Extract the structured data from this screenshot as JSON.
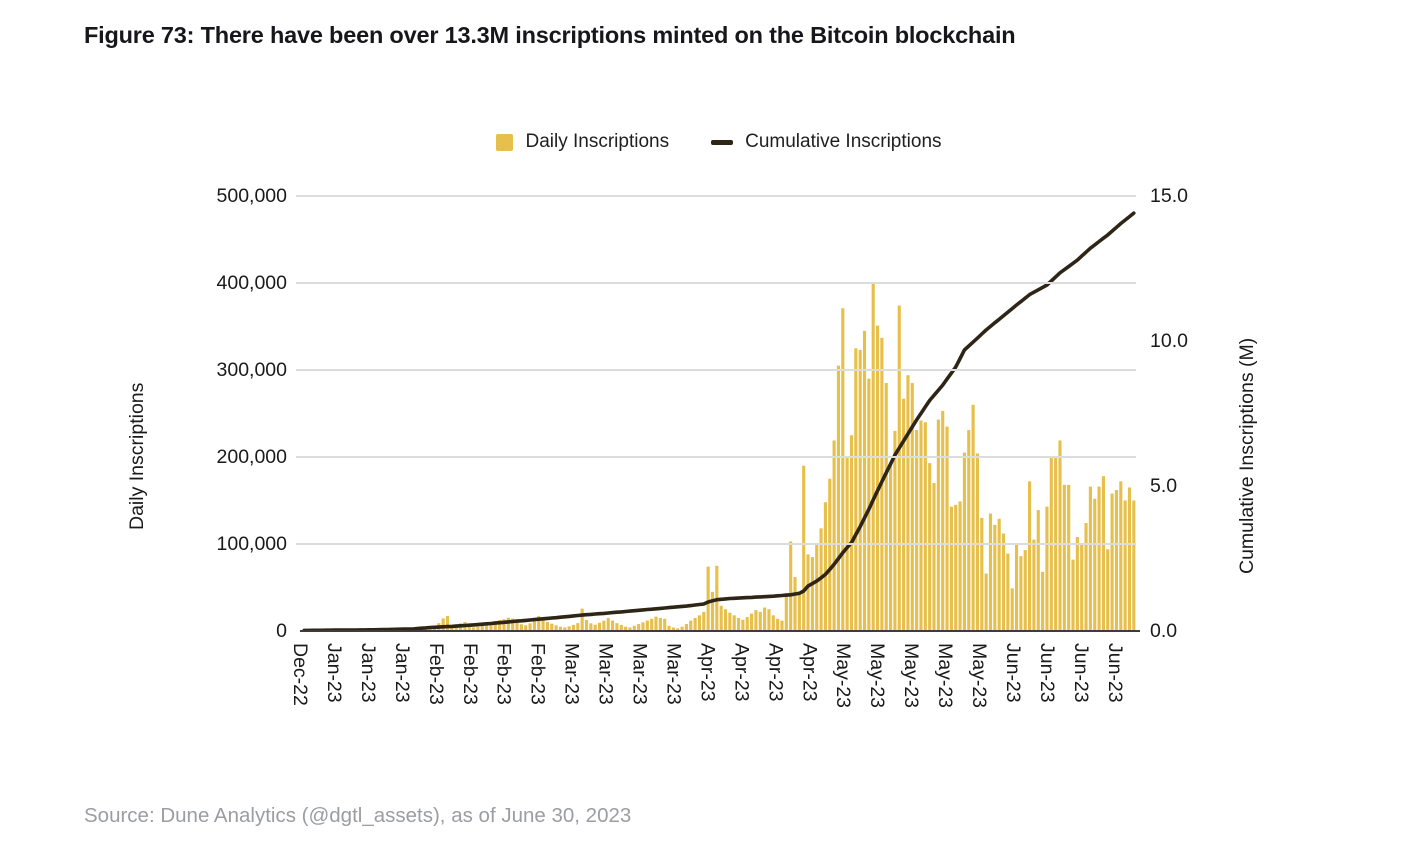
{
  "figure_title": "Figure 73: There have been over 13.3M inscriptions minted on the Bitcoin blockchain",
  "source": "Source: Dune Analytics (@dgtl_assets), as of June 30, 2023",
  "legend": {
    "daily_label": "Daily Inscriptions",
    "cumulative_label": "Cumulative Inscriptions"
  },
  "colors": {
    "bar": "#E7BF4B",
    "line": "#2E2517",
    "grid": "#dcdcdc",
    "axis": "#3c3c3c",
    "text": "#1a1a1a",
    "source_text": "#9b9da2"
  },
  "chart_data": {
    "type": "bar",
    "title": "Figure 73: There have been over 13.3M inscriptions minted on the Bitcoin blockchain",
    "grid": "horizontal",
    "legend_position": "top-center",
    "left_axis": {
      "label": "Daily Inscriptions",
      "min": 0,
      "max": 500000,
      "ticks": [
        "500,000",
        "400,000",
        "300,000",
        "200,000",
        "100,000",
        "0"
      ]
    },
    "right_axis": {
      "label": "Cumulative Inscriptions (M)",
      "min": 0,
      "max": 15,
      "ticks": [
        "15.0",
        "10.0",
        "5.0",
        "0.0"
      ]
    },
    "x_tick_labels": [
      "Dec-22",
      "Jan-23",
      "Jan-23",
      "Jan-23",
      "Feb-23",
      "Feb-23",
      "Feb-23",
      "Feb-23",
      "Mar-23",
      "Mar-23",
      "Mar-23",
      "Mar-23",
      "Apr-23",
      "Apr-23",
      "Apr-23",
      "Apr-23",
      "May-23",
      "May-23",
      "May-23",
      "May-23",
      "May-23",
      "Jun-23",
      "Jun-23",
      "Jun-23",
      "Jun-23"
    ],
    "x_tick_span_fraction": 0.977,
    "series": [
      {
        "name": "Daily Inscriptions",
        "type": "bar",
        "axis": "left",
        "unit": "inscriptions per day (approx.)",
        "values": [
          100,
          100,
          100,
          100,
          150,
          200,
          200,
          250,
          300,
          350,
          400,
          400,
          450,
          500,
          550,
          600,
          650,
          700,
          750,
          800,
          850,
          900,
          950,
          1000,
          1100,
          1400,
          1800,
          2300,
          3400,
          5000,
          5700,
          9000,
          14500,
          17200,
          6900,
          7700,
          8800,
          10300,
          5700,
          4200,
          5000,
          6500,
          8000,
          9600,
          11500,
          12600,
          13400,
          15300,
          14200,
          10300,
          7700,
          6500,
          8800,
          11000,
          17200,
          13800,
          10300,
          8400,
          6500,
          5000,
          4200,
          5300,
          7000,
          9000,
          25700,
          12600,
          8800,
          7200,
          9500,
          11800,
          14900,
          12000,
          9000,
          7000,
          5000,
          4000,
          6000,
          8000,
          10000,
          12000,
          14000,
          16500,
          15000,
          14000,
          6000,
          4000,
          3000,
          5000,
          8000,
          12000,
          15000,
          18000,
          22000,
          74000,
          45000,
          75000,
          29000,
          25000,
          21000,
          18000,
          15000,
          13000,
          16000,
          20000,
          24000,
          22000,
          27000,
          25000,
          18000,
          14000,
          12000,
          42000,
          103000,
          62000,
          45000,
          190000,
          88000,
          85000,
          100000,
          118000,
          148000,
          175000,
          219000,
          305000,
          371000,
          200000,
          225000,
          325000,
          323000,
          345000,
          290000,
          400000,
          351000,
          337000,
          285000,
          192000,
          230000,
          374000,
          267000,
          294000,
          285000,
          231000,
          242000,
          240000,
          193000,
          170000,
          243000,
          253000,
          235000,
          143000,
          145000,
          149000,
          205000,
          231000,
          260000,
          204000,
          130000,
          66000,
          135000,
          122000,
          129000,
          112000,
          89000,
          49000,
          101000,
          86000,
          93000,
          172000,
          105000,
          139000,
          68000,
          143000,
          201000,
          201000,
          219000,
          168000,
          168000,
          82000,
          108000,
          101000,
          124000,
          166000,
          152000,
          166000,
          178000,
          94000,
          158000,
          162000,
          172000,
          150000,
          165000,
          150000
        ]
      },
      {
        "name": "Cumulative Inscriptions",
        "type": "line",
        "axis": "right",
        "unit": "millions",
        "points": [
          [
            0,
            0.02
          ],
          [
            15,
            0.04
          ],
          [
            25,
            0.07
          ],
          [
            29,
            0.12
          ],
          [
            34,
            0.16
          ],
          [
            40,
            0.22
          ],
          [
            46,
            0.3
          ],
          [
            52,
            0.38
          ],
          [
            58,
            0.46
          ],
          [
            64,
            0.55
          ],
          [
            70,
            0.62
          ],
          [
            76,
            0.7
          ],
          [
            82,
            0.78
          ],
          [
            88,
            0.86
          ],
          [
            92,
            0.93
          ],
          [
            93,
            1.0
          ],
          [
            95,
            1.08
          ],
          [
            98,
            1.12
          ],
          [
            103,
            1.16
          ],
          [
            108,
            1.2
          ],
          [
            112,
            1.25
          ],
          [
            114,
            1.3
          ],
          [
            115,
            1.38
          ],
          [
            116,
            1.55
          ],
          [
            118,
            1.72
          ],
          [
            120,
            1.95
          ],
          [
            122,
            2.3
          ],
          [
            124,
            2.7
          ],
          [
            126,
            3.05
          ],
          [
            128,
            3.6
          ],
          [
            130,
            4.2
          ],
          [
            131,
            4.52
          ],
          [
            133,
            5.15
          ],
          [
            136,
            6.07
          ],
          [
            139,
            6.8
          ],
          [
            141,
            7.28
          ],
          [
            144,
            7.95
          ],
          [
            147,
            8.48
          ],
          [
            150,
            9.1
          ],
          [
            152,
            9.69
          ],
          [
            155,
            10.1
          ],
          [
            157,
            10.38
          ],
          [
            160,
            10.75
          ],
          [
            164,
            11.24
          ],
          [
            167,
            11.6
          ],
          [
            171,
            11.93
          ],
          [
            174,
            12.35
          ],
          [
            178,
            12.79
          ],
          [
            181,
            13.2
          ],
          [
            185,
            13.66
          ],
          [
            188,
            14.05
          ],
          [
            191,
            14.41
          ]
        ],
        "end_value_m": 14.41
      }
    ]
  }
}
